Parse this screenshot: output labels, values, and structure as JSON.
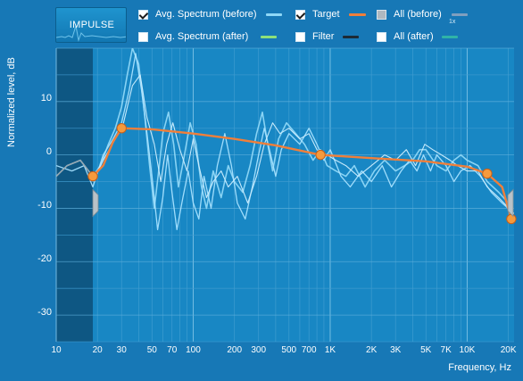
{
  "impulse_button": {
    "label": "IMPULSE"
  },
  "legend": {
    "avg_before": {
      "label": "Avg. Spectrum (before)",
      "checked": true,
      "color": "#8ed7f7"
    },
    "avg_after": {
      "label": "Avg. Spectrum (after)",
      "checked": false,
      "color": "#8ee07a"
    },
    "target": {
      "label": "Target",
      "checked": true,
      "color": "#f07f3a"
    },
    "filter": {
      "label": "Filter",
      "checked": false,
      "color": "#1d2a35"
    },
    "all_before": {
      "label": "All (before)",
      "checked": true,
      "color": "#7f9fbf",
      "scale": "1x"
    },
    "all_after": {
      "label": "All (after)",
      "checked": false,
      "color": "#2fb3a7"
    }
  },
  "axes": {
    "ylabel": "Normalized level, dB",
    "xlabel": "Frequency, Hz",
    "ylim": [
      -35,
      20
    ],
    "xlim": [
      10,
      22000
    ],
    "x_scale": "log",
    "yticks": [
      "10",
      "0",
      "-10",
      "-20",
      "-30"
    ],
    "xticks": [
      "10",
      "20",
      "30",
      "50",
      "70",
      "100",
      "200",
      "300",
      "500",
      "700",
      "1K",
      "2K",
      "3K",
      "5K",
      "7K",
      "10K",
      "20K"
    ]
  },
  "chart_data": {
    "type": "line",
    "x_scale": "log",
    "ylim": [
      -35,
      20
    ],
    "xlim": [
      10,
      22000
    ],
    "grid": true,
    "shaded_region": {
      "from_hz": 10,
      "to_hz": 18.5
    },
    "target_points": [
      {
        "x": 18.5,
        "y": -4
      },
      {
        "x": 30,
        "y": 5
      },
      {
        "x": 850,
        "y": 0
      },
      {
        "x": 14000,
        "y": -3.5
      },
      {
        "x": 21000,
        "y": -12
      }
    ],
    "target_curve": [
      [
        18.5,
        -4
      ],
      [
        22,
        -2
      ],
      [
        26,
        2.5
      ],
      [
        30,
        5
      ],
      [
        50,
        4.8
      ],
      [
        100,
        4
      ],
      [
        200,
        3
      ],
      [
        400,
        1.8
      ],
      [
        850,
        0
      ],
      [
        2000,
        -0.6
      ],
      [
        5000,
        -1.2
      ],
      [
        10000,
        -2.2
      ],
      [
        14000,
        -3.5
      ],
      [
        18000,
        -6
      ],
      [
        21000,
        -12
      ]
    ],
    "series": [
      {
        "name": "Avg. Spectrum (before)",
        "points": [
          [
            10,
            -4
          ],
          [
            12,
            -2
          ],
          [
            15,
            -1
          ],
          [
            18.5,
            -4
          ],
          [
            21,
            -2
          ],
          [
            24,
            2
          ],
          [
            27,
            5
          ],
          [
            30,
            9
          ],
          [
            33,
            15
          ],
          [
            36,
            20
          ],
          [
            40,
            17
          ],
          [
            44,
            8
          ],
          [
            48,
            -2
          ],
          [
            52,
            -10
          ],
          [
            56,
            -3
          ],
          [
            60,
            4
          ],
          [
            66,
            8
          ],
          [
            72,
            2
          ],
          [
            78,
            -6
          ],
          [
            85,
            -1
          ],
          [
            95,
            6
          ],
          [
            105,
            2
          ],
          [
            115,
            -6
          ],
          [
            125,
            -10
          ],
          [
            140,
            -3
          ],
          [
            160,
            -8
          ],
          [
            180,
            -2
          ],
          [
            200,
            -5
          ],
          [
            230,
            -7
          ],
          [
            260,
            -2
          ],
          [
            290,
            4
          ],
          [
            320,
            8
          ],
          [
            350,
            2
          ],
          [
            380,
            -3
          ],
          [
            420,
            3
          ],
          [
            480,
            6
          ],
          [
            560,
            4
          ],
          [
            650,
            2
          ],
          [
            750,
            -1
          ],
          [
            850,
            1
          ],
          [
            950,
            -2
          ],
          [
            1100,
            -3
          ],
          [
            1300,
            -4
          ],
          [
            1500,
            -2
          ],
          [
            1800,
            -6
          ],
          [
            2100,
            -3
          ],
          [
            2500,
            -1
          ],
          [
            3000,
            -3
          ],
          [
            3500,
            -2
          ],
          [
            4000,
            -1
          ],
          [
            4500,
            1
          ],
          [
            5000,
            1
          ],
          [
            6000,
            -2
          ],
          [
            7000,
            -3
          ],
          [
            8000,
            -1
          ],
          [
            9000,
            0
          ],
          [
            10000,
            -1
          ],
          [
            12000,
            -2
          ],
          [
            14000,
            -5
          ],
          [
            17000,
            -7
          ],
          [
            20000,
            -9
          ],
          [
            22000,
            -12
          ]
        ]
      },
      {
        "name": "All (before)",
        "points": [
          [
            10,
            -2
          ],
          [
            13,
            -3
          ],
          [
            16,
            -2
          ],
          [
            18.5,
            -6
          ],
          [
            22,
            0
          ],
          [
            26,
            3
          ],
          [
            30,
            6
          ],
          [
            34,
            12
          ],
          [
            38,
            19
          ],
          [
            42,
            12
          ],
          [
            46,
            4
          ],
          [
            50,
            -4
          ],
          [
            55,
            -14
          ],
          [
            60,
            -8
          ],
          [
            65,
            0
          ],
          [
            70,
            -7
          ],
          [
            76,
            -14
          ],
          [
            84,
            -8
          ],
          [
            92,
            -3
          ],
          [
            100,
            -9
          ],
          [
            110,
            -12
          ],
          [
            120,
            -4
          ],
          [
            135,
            -10
          ],
          [
            150,
            -2
          ],
          [
            170,
            4
          ],
          [
            190,
            -2
          ],
          [
            210,
            -9
          ],
          [
            240,
            -12
          ],
          [
            270,
            -6
          ],
          [
            300,
            0
          ],
          [
            330,
            5
          ],
          [
            360,
            1
          ],
          [
            400,
            -4
          ],
          [
            440,
            1
          ],
          [
            500,
            4
          ],
          [
            600,
            2
          ],
          [
            700,
            5
          ],
          [
            800,
            2
          ],
          [
            900,
            -1
          ],
          [
            1000,
            1
          ],
          [
            1200,
            -4
          ],
          [
            1400,
            -6
          ],
          [
            1700,
            -3
          ],
          [
            2000,
            -5
          ],
          [
            2400,
            -2
          ],
          [
            2800,
            -6
          ],
          [
            3300,
            -3
          ],
          [
            3800,
            -1
          ],
          [
            4300,
            -3
          ],
          [
            4800,
            0
          ],
          [
            5400,
            -3
          ],
          [
            6000,
            0
          ],
          [
            7000,
            -2
          ],
          [
            8000,
            -5
          ],
          [
            9000,
            -3
          ],
          [
            10500,
            -2
          ],
          [
            12500,
            -4
          ],
          [
            15000,
            -7
          ],
          [
            18000,
            -9
          ],
          [
            22000,
            -11
          ]
        ]
      },
      {
        "name": "Avg. Spectrum (before)",
        "points": [
          [
            18.5,
            -5
          ],
          [
            22,
            -1
          ],
          [
            27,
            3
          ],
          [
            31,
            6
          ],
          [
            36,
            13
          ],
          [
            41,
            15
          ],
          [
            46,
            7
          ],
          [
            52,
            2
          ],
          [
            58,
            -5
          ],
          [
            64,
            2
          ],
          [
            71,
            6
          ],
          [
            80,
            1
          ],
          [
            90,
            -3
          ],
          [
            100,
            3
          ],
          [
            110,
            -2
          ],
          [
            125,
            -8
          ],
          [
            140,
            -5
          ],
          [
            160,
            -3
          ],
          [
            180,
            -6
          ],
          [
            210,
            -4
          ],
          [
            250,
            -9
          ],
          [
            290,
            -4
          ],
          [
            330,
            2
          ],
          [
            380,
            6
          ],
          [
            430,
            4
          ],
          [
            500,
            5
          ],
          [
            600,
            3
          ],
          [
            700,
            4
          ],
          [
            800,
            1
          ],
          [
            950,
            0
          ],
          [
            1100,
            -1
          ],
          [
            1300,
            -2
          ],
          [
            1600,
            -4
          ],
          [
            2000,
            -2
          ],
          [
            2500,
            0
          ],
          [
            3000,
            -1
          ],
          [
            3600,
            1
          ],
          [
            4200,
            -2
          ],
          [
            4900,
            2
          ],
          [
            5600,
            1
          ],
          [
            6500,
            0
          ],
          [
            7500,
            -1
          ],
          [
            8500,
            -2
          ],
          [
            10000,
            -3
          ],
          [
            12000,
            -3
          ],
          [
            14000,
            -6
          ],
          [
            17000,
            -8
          ],
          [
            22000,
            -11
          ]
        ]
      }
    ]
  }
}
